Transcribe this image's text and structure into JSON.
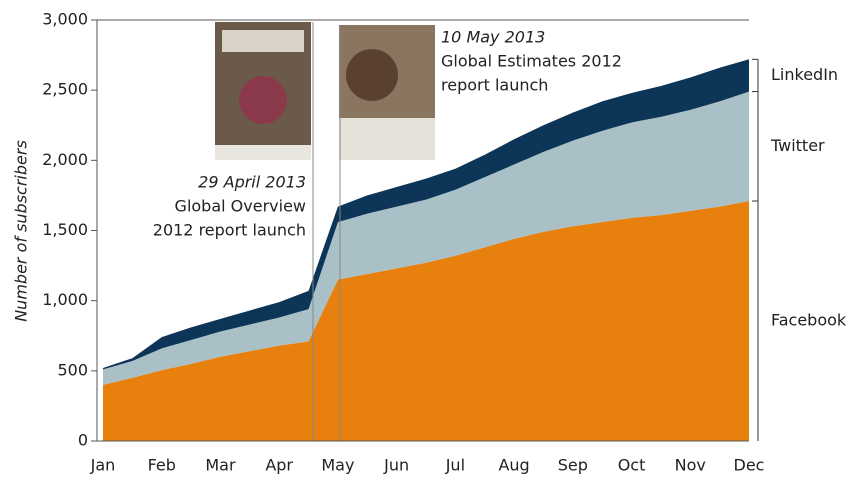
{
  "chart_data": {
    "type": "stacked_area",
    "y_label": "Number of subscribers",
    "categories": [
      "Jan",
      null,
      "Feb",
      null,
      "Mar",
      null,
      "Apr",
      null,
      "May",
      null,
      "Jun",
      null,
      "Jul",
      null,
      "Aug",
      null,
      "Sep",
      null,
      "Oct",
      null,
      "Nov",
      null,
      "Dec"
    ],
    "series": [
      {
        "name": "Facebook",
        "color": "#e8800d",
        "values": [
          400,
          450,
          505,
          550,
          600,
          640,
          680,
          710,
          1150,
          1190,
          1230,
          1270,
          1320,
          1380,
          1440,
          1490,
          1530,
          1560,
          1590,
          1610,
          1640,
          1670,
          1710
        ]
      },
      {
        "name": "Twitter",
        "color": "#a8c0c6",
        "values": [
          110,
          120,
          155,
          170,
          180,
          190,
          200,
          230,
          410,
          430,
          440,
          450,
          470,
          500,
          530,
          570,
          610,
          650,
          680,
          700,
          720,
          750,
          780
        ]
      },
      {
        "name": "LinkedIn",
        "color": "#0c3558",
        "values": [
          10,
          20,
          80,
          90,
          90,
          100,
          110,
          130,
          110,
          130,
          140,
          150,
          150,
          160,
          180,
          190,
          200,
          210,
          210,
          220,
          230,
          240,
          230
        ]
      }
    ],
    "ylim": [
      0,
      3000
    ],
    "yticks": [
      0,
      500,
      {
        "value": 1000,
        "label": "1,000"
      },
      {
        "value": 1500,
        "label": "1,500"
      },
      {
        "value": 2000,
        "label": "2,000"
      },
      {
        "value": 2500,
        "label": "2,500"
      },
      {
        "value": 3000,
        "label": "3,000"
      }
    ],
    "annotations": [
      {
        "lines": [
          "29 April 2013",
          "Global Overview",
          "2012 report launch"
        ]
      },
      {
        "lines": [
          "10 May 2013",
          "Global Estimates 2012",
          "report launch"
        ]
      }
    ]
  }
}
